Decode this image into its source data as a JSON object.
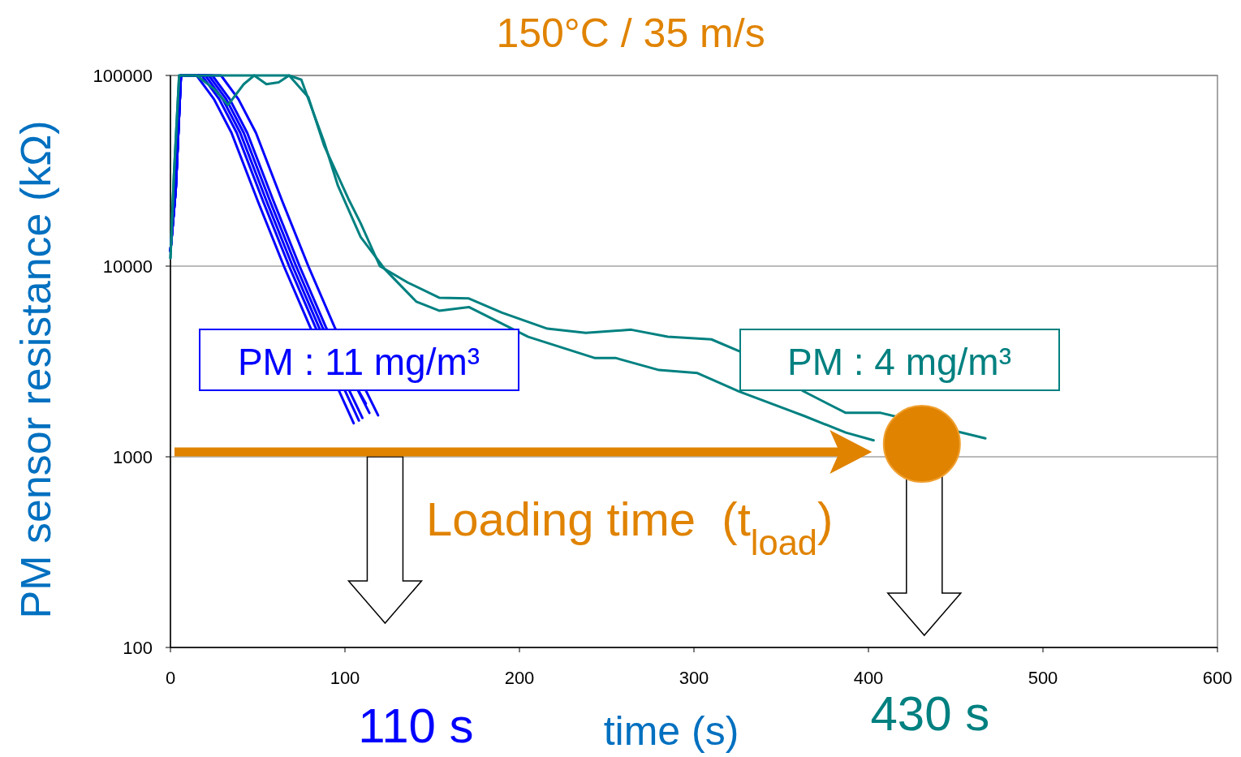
{
  "chart_data": {
    "type": "line",
    "title": "150°C / 35 m/s",
    "xlabel": "time (s)",
    "ylabel": "PM sensor resistance (kΩ)",
    "xlim": [
      0,
      600
    ],
    "xticks": [
      0,
      100,
      200,
      300,
      400,
      500,
      600
    ],
    "ylim": [
      100,
      100000
    ],
    "yticks": [
      100,
      1000,
      10000,
      100000
    ],
    "log": "y",
    "grid": "y",
    "marker": "none",
    "line_style": "solid",
    "series": [
      {
        "color": "#0000ff",
        "x": [
          0,
          3,
          6,
          15,
          25,
          35,
          50,
          65,
          80,
          105
        ],
        "values": [
          12000,
          25000,
          100000,
          100000,
          75000,
          50000,
          22000,
          10000,
          4800,
          1500
        ]
      },
      {
        "color": "#0000ff",
        "x": [
          0,
          3,
          6,
          18,
          28,
          38,
          53,
          68,
          83,
          108
        ],
        "values": [
          12000,
          25000,
          100000,
          100000,
          75000,
          50000,
          22000,
          10000,
          4800,
          1550
        ]
      },
      {
        "color": "#0000ff",
        "x": [
          0,
          3,
          6,
          20,
          30,
          40,
          55,
          70,
          85,
          110
        ],
        "values": [
          12000,
          25000,
          100000,
          100000,
          75000,
          50000,
          22000,
          10000,
          4800,
          1600
        ]
      },
      {
        "color": "#0000ff",
        "x": [
          0,
          3,
          6,
          22,
          32,
          42,
          57,
          72,
          87,
          112
        ],
        "values": [
          12000,
          25000,
          100000,
          100000,
          75000,
          50000,
          22000,
          10000,
          4800,
          1900
        ]
      },
      {
        "color": "#0000ff",
        "x": [
          0,
          3,
          6,
          24,
          34,
          44,
          59,
          74,
          89,
          114
        ],
        "values": [
          12000,
          25000,
          100000,
          100000,
          75000,
          50000,
          22000,
          10000,
          4800,
          1700
        ]
      },
      {
        "color": "#0000ff",
        "x": [
          0,
          3,
          6,
          29,
          39,
          49,
          64,
          79,
          94,
          119
        ],
        "values": [
          12000,
          25000,
          100000,
          100000,
          75000,
          50000,
          22000,
          10000,
          4800,
          1650
        ]
      },
      {
        "color": "#008080",
        "x": [
          0,
          2,
          5,
          20,
          40,
          55,
          68,
          79,
          88,
          102,
          109,
          120,
          136,
          154,
          171,
          190,
          216,
          238,
          264,
          285,
          310,
          326,
          363,
          387,
          407,
          467
        ],
        "values": [
          11000,
          30000,
          100000,
          100000,
          100000,
          100000,
          100000,
          77000,
          43000,
          22500,
          16800,
          10000,
          8200,
          6830,
          6770,
          5700,
          4700,
          4470,
          4640,
          4260,
          4130,
          3580,
          2200,
          1700,
          1700,
          1250
        ]
      },
      {
        "color": "#008080",
        "x": [
          0,
          2,
          5,
          15,
          25,
          33,
          42,
          48,
          55,
          62,
          68,
          75,
          88,
          96,
          109,
          123,
          141,
          154,
          171,
          205,
          243,
          255,
          280,
          302,
          326,
          363,
          387,
          403
        ],
        "values": [
          11000,
          30000,
          100000,
          100000,
          85000,
          70000,
          90000,
          100000,
          90000,
          92000,
          100000,
          95000,
          45000,
          26400,
          14200,
          9600,
          6500,
          5840,
          6100,
          4260,
          3300,
          3300,
          2850,
          2750,
          2200,
          1640,
          1340,
          1220
        ]
      }
    ],
    "annotations": [
      "PM : 11 mg/m³",
      "PM : 4 mg/m³",
      "Loading time  (t$_{load}$)",
      "110 s",
      "430 s"
    ]
  }
}
